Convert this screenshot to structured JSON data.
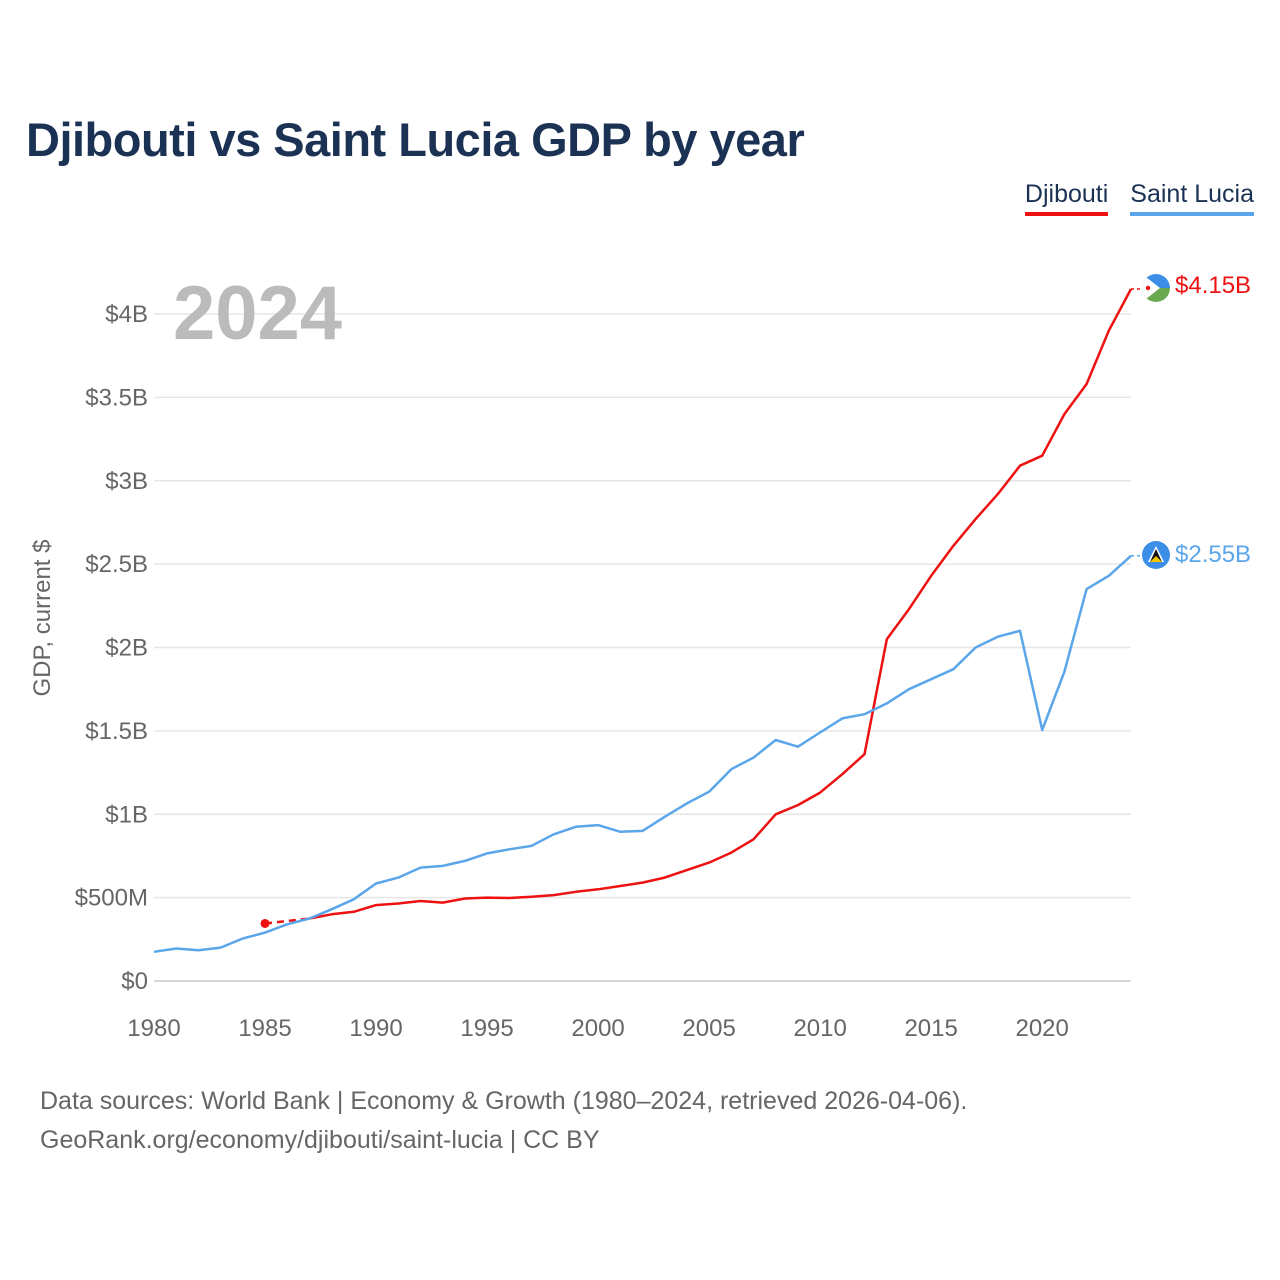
{
  "title": "Djibouti vs Saint Lucia GDP by year",
  "legend": [
    {
      "label": "Djibouti",
      "color": "#ee1111"
    },
    {
      "label": "Saint Lucia",
      "color": "#5ba6ea"
    }
  ],
  "year_label": "2024",
  "footer": {
    "line1": "Data sources: World Bank | Economy & Growth (1980–2024, retrieved 2026-04-06).",
    "line2": "GeoRank.org/economy/djibouti/saint-lucia | CC BY"
  },
  "chart_data": {
    "type": "line",
    "title": "Djibouti vs Saint Lucia GDP by year",
    "xlabel": "",
    "ylabel": "GDP, current $",
    "xlim": [
      1980,
      2024
    ],
    "ylim": [
      0,
      4300000000
    ],
    "grid": true,
    "legend_position": "top-right",
    "x_ticks": [
      1980,
      1985,
      1990,
      1995,
      2000,
      2005,
      2010,
      2015,
      2020
    ],
    "y_ticks": [
      {
        "value": 0,
        "label": "$0"
      },
      {
        "value": 500000000,
        "label": "$500M"
      },
      {
        "value": 1000000000,
        "label": "$1B"
      },
      {
        "value": 1500000000,
        "label": "$1.5B"
      },
      {
        "value": 2000000000,
        "label": "$2B"
      },
      {
        "value": 2500000000,
        "label": "$2.5B"
      },
      {
        "value": 3000000000,
        "label": "$3B"
      },
      {
        "value": 3500000000,
        "label": "$3.5B"
      },
      {
        "value": 4000000000,
        "label": "$4B"
      }
    ],
    "series": [
      {
        "name": "Djibouti",
        "color": "#ee1111",
        "start_marker": {
          "x": 1985,
          "y": 345000000
        },
        "dashed_segment": [
          {
            "x": 1985,
            "y": 345000000
          },
          {
            "x": 1987,
            "y": 375000000
          }
        ],
        "x": [
          1987,
          1988,
          1989,
          1990,
          1991,
          1992,
          1993,
          1994,
          1995,
          1996,
          1997,
          1998,
          1999,
          2000,
          2001,
          2002,
          2003,
          2004,
          2005,
          2006,
          2007,
          2008,
          2009,
          2010,
          2011,
          2012,
          2013,
          2014,
          2015,
          2016,
          2017,
          2018,
          2019,
          2020,
          2021,
          2022,
          2023,
          2024
        ],
        "values": [
          375000000,
          400000000,
          415000000,
          455000000,
          465000000,
          480000000,
          470000000,
          495000000,
          500000000,
          498000000,
          505000000,
          515000000,
          535000000,
          550000000,
          570000000,
          590000000,
          620000000,
          665000000,
          710000000,
          770000000,
          850000000,
          1000000000,
          1055000000,
          1130000000,
          1240000000,
          1360000000,
          2050000000,
          2230000000,
          2430000000,
          2610000000,
          2770000000,
          2920000000,
          3090000000,
          3150000000,
          3400000000,
          3580000000,
          3900000000,
          4150000000
        ],
        "end_label": "$4.15B"
      },
      {
        "name": "Saint Lucia",
        "color": "#5ba6ea",
        "x": [
          1980,
          1981,
          1982,
          1983,
          1984,
          1985,
          1986,
          1987,
          1988,
          1989,
          1990,
          1991,
          1992,
          1993,
          1994,
          1995,
          1996,
          1997,
          1998,
          1999,
          2000,
          2001,
          2002,
          2003,
          2004,
          2005,
          2006,
          2007,
          2008,
          2009,
          2010,
          2011,
          2012,
          2013,
          2014,
          2015,
          2016,
          2017,
          2018,
          2019,
          2020,
          2021,
          2022,
          2023,
          2024
        ],
        "values": [
          175000000,
          195000000,
          185000000,
          200000000,
          255000000,
          290000000,
          340000000,
          375000000,
          430000000,
          490000000,
          585000000,
          620000000,
          680000000,
          690000000,
          720000000,
          765000000,
          790000000,
          810000000,
          880000000,
          925000000,
          935000000,
          895000000,
          900000000,
          985000000,
          1065000000,
          1135000000,
          1270000000,
          1340000000,
          1445000000,
          1405000000,
          1490000000,
          1575000000,
          1600000000,
          1665000000,
          1750000000,
          1810000000,
          1870000000,
          2000000000,
          2065000000,
          2100000000,
          1505000000,
          1855000000,
          2350000000,
          2430000000,
          2550000000
        ],
        "end_label": "$2.55B"
      }
    ]
  }
}
